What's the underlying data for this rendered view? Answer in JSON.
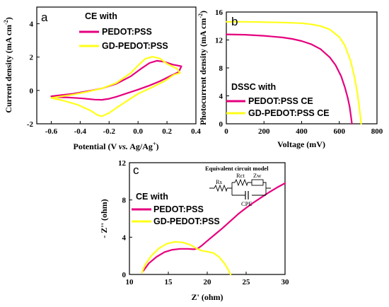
{
  "colors": {
    "pedot": "#e6007e",
    "gd": "#ffff1a"
  },
  "chart_data": [
    {
      "type": "line",
      "panel_label": "a",
      "xlabel": "Potential (V vs. Ag/Ag+)",
      "xlabel_parts": {
        "pre": "Potential (V ",
        "vs": "vs.",
        "post": " Ag/Ag",
        "sup": "+",
        "end": ")"
      },
      "ylabel": "Current density (mA cm-2)",
      "ylabel_parts": {
        "main": "Current density (mA cm",
        "sup": "-2",
        "end": ")"
      },
      "xlim": [
        -0.7,
        0.4
      ],
      "ylim": [
        -2,
        5
      ],
      "xticks": [
        "-0.6",
        "-0.4",
        "-0.2",
        "0.0",
        "0.2",
        "0.4"
      ],
      "yticks": [
        "-2",
        "0",
        "2",
        "4"
      ],
      "legend_title": "CE with",
      "series": [
        {
          "name": "PEDOT:PSS",
          "color": "#e6007e",
          "x": [
            -0.6,
            -0.55,
            -0.45,
            -0.35,
            -0.25,
            -0.15,
            -0.05,
            0.02,
            0.08,
            0.13,
            0.18,
            0.24,
            0.3,
            0.28,
            0.22,
            0.15,
            0.08,
            0.0,
            -0.08,
            -0.15,
            -0.2,
            -0.25,
            -0.3,
            -0.38,
            -0.48,
            -0.58,
            -0.6
          ],
          "y": [
            -0.35,
            -0.3,
            -0.2,
            -0.05,
            0.12,
            0.4,
            0.85,
            1.3,
            1.65,
            1.78,
            1.72,
            1.55,
            1.45,
            1.1,
            0.85,
            0.55,
            0.3,
            0.05,
            -0.18,
            -0.38,
            -0.5,
            -0.56,
            -0.55,
            -0.48,
            -0.42,
            -0.4,
            -0.35
          ]
        },
        {
          "name": "GD-PEDOT:PSS",
          "color": "#ffff1a",
          "x": [
            -0.6,
            -0.55,
            -0.45,
            -0.35,
            -0.25,
            -0.15,
            -0.05,
            0.0,
            0.05,
            0.1,
            0.15,
            0.2,
            0.27,
            0.29,
            0.25,
            0.18,
            0.1,
            0.0,
            -0.08,
            -0.15,
            -0.2,
            -0.25,
            -0.28,
            -0.33,
            -0.42,
            -0.52,
            -0.6
          ],
          "y": [
            -0.45,
            -0.38,
            -0.25,
            -0.08,
            0.12,
            0.45,
            1.05,
            1.5,
            1.9,
            2.02,
            1.92,
            1.6,
            1.3,
            1.05,
            0.95,
            0.55,
            0.2,
            -0.2,
            -0.65,
            -1.05,
            -1.35,
            -1.55,
            -1.48,
            -1.2,
            -0.85,
            -0.6,
            -0.45
          ]
        }
      ]
    },
    {
      "type": "line",
      "panel_label": "b",
      "xlabel": "Voltage (mV)",
      "ylabel": "Photocurrent density (mA cm-2)",
      "ylabel_parts": {
        "main": "Photocurrent density (mA cm",
        "sup": "-2",
        "end": ")"
      },
      "xlim": [
        0,
        800
      ],
      "ylim": [
        0,
        16
      ],
      "xticks": [
        "0",
        "200",
        "400",
        "600",
        "800"
      ],
      "yticks": [
        "0",
        "4",
        "8",
        "12",
        "16"
      ],
      "legend_title": "DSSC with",
      "series": [
        {
          "name": "PEDOT:PSS CE",
          "color": "#e6007e",
          "x": [
            0,
            100,
            200,
            300,
            350,
            400,
            450,
            500,
            550,
            580,
            610,
            630,
            645,
            655,
            662,
            667
          ],
          "y": [
            12.8,
            12.75,
            12.6,
            12.35,
            12.15,
            11.85,
            11.4,
            10.7,
            9.5,
            8.4,
            6.8,
            5.2,
            3.7,
            2.4,
            1.0,
            0.0
          ]
        },
        {
          "name": "GD-PEDOT:PSS CE",
          "color": "#ffff1a",
          "x": [
            0,
            100,
            200,
            300,
            400,
            450,
            500,
            550,
            600,
            630,
            660,
            680,
            695,
            705,
            712,
            716
          ],
          "y": [
            14.6,
            14.6,
            14.55,
            14.5,
            14.4,
            14.25,
            14.0,
            13.5,
            12.4,
            11.2,
            9.0,
            6.8,
            4.6,
            2.6,
            1.0,
            0.0
          ]
        }
      ]
    },
    {
      "type": "line",
      "panel_label": "c",
      "xlabel": "Z' (ohm)",
      "ylabel": "- Z'' (ohm)",
      "xlim": [
        10,
        30
      ],
      "ylim": [
        0,
        12
      ],
      "xticks": [
        "10",
        "15",
        "20",
        "25",
        "30"
      ],
      "yticks": [
        "0",
        "4",
        "8",
        "12"
      ],
      "legend_title": "CE with",
      "inset": {
        "title": "Equivalent circuit model",
        "labels": [
          "Rs",
          "Rct",
          "Zw",
          "CPE"
        ]
      },
      "series": [
        {
          "name": "PEDOT:PSS",
          "color": "#e6007e",
          "x": [
            11.8,
            12.5,
            13.5,
            14.5,
            15.5,
            16.5,
            17.5,
            18.3,
            18.8,
            19.3,
            20.0,
            21.0,
            22.0,
            23.0,
            24.0,
            25.0,
            26.0,
            27.0,
            28.0,
            29.0,
            30.0
          ],
          "y": [
            0.4,
            1.2,
            1.9,
            2.4,
            2.65,
            2.75,
            2.75,
            2.7,
            2.8,
            3.1,
            3.6,
            4.3,
            5.0,
            5.75,
            6.5,
            7.15,
            7.75,
            8.3,
            8.85,
            9.35,
            9.8
          ]
        },
        {
          "name": "GD-PEDOT:PSS",
          "color": "#ffff1a",
          "x": [
            11.6,
            12.0,
            12.8,
            13.8,
            14.8,
            15.8,
            16.8,
            17.8,
            18.6,
            19.3,
            20.0,
            20.8,
            21.5,
            22.2,
            22.7,
            23.0
          ],
          "y": [
            0.2,
            1.0,
            2.0,
            2.8,
            3.3,
            3.5,
            3.45,
            3.2,
            2.8,
            2.55,
            2.45,
            2.3,
            1.9,
            1.2,
            0.5,
            0.0
          ]
        }
      ]
    }
  ]
}
